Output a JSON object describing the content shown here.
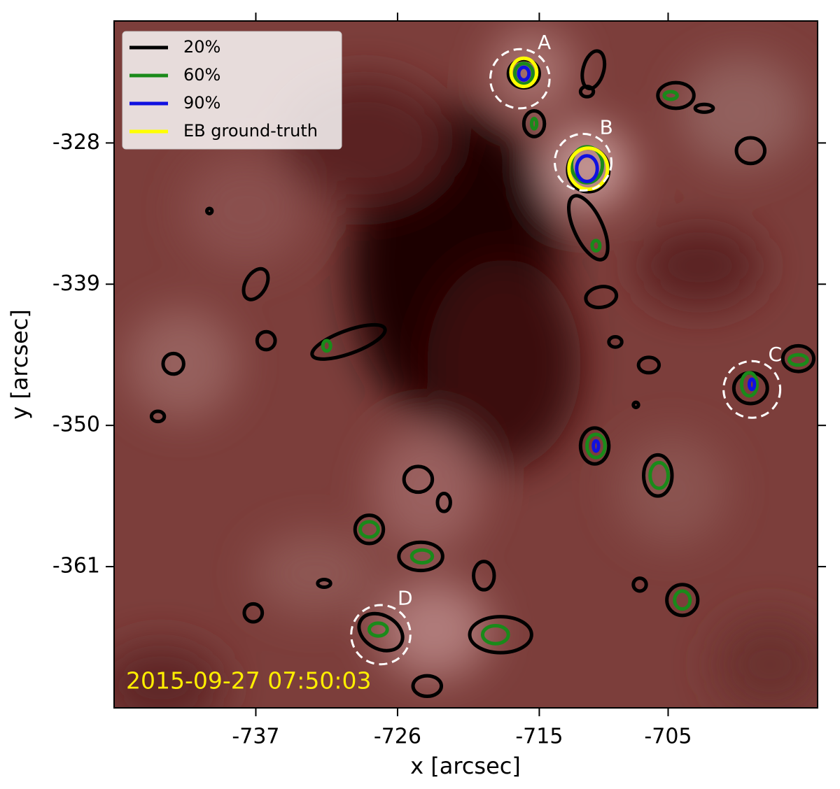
{
  "chart_data": {
    "type": "contour",
    "xlabel": "x [arcsec]",
    "ylabel": "y [arcsec]",
    "xlim": [
      -748.0,
      -693.4
    ],
    "ylim": [
      -372.0,
      -318.5
    ],
    "xticks": [
      -737,
      -726,
      -715,
      -705
    ],
    "yticks": [
      -328,
      -339,
      -350,
      -361
    ],
    "timestamp": "2015-09-27 07:50:03",
    "timestamp_color": "#ffee00",
    "legend": "upper left",
    "series": [
      {
        "name": "20%",
        "color": "#000000",
        "contours": [
          {
            "cx": -716.2,
            "cy": -322.6,
            "rx": 1.2,
            "ry": 1.1
          },
          {
            "cx": -710.8,
            "cy": -322.3,
            "rx": 0.8,
            "ry": 1.5,
            "angle": 15
          },
          {
            "cx": -711.3,
            "cy": -324.0,
            "rx": 0.5,
            "ry": 0.4
          },
          {
            "cx": -715.4,
            "cy": -326.5,
            "rx": 0.8,
            "ry": 1.0
          },
          {
            "cx": -704.4,
            "cy": -324.3,
            "rx": 1.4,
            "ry": 1.0
          },
          {
            "cx": -702.2,
            "cy": -325.3,
            "rx": 0.7,
            "ry": 0.3
          },
          {
            "cx": -698.6,
            "cy": -328.6,
            "rx": 1.1,
            "ry": 1.0
          },
          {
            "cx": -711.2,
            "cy": -330.1,
            "rx": 1.6,
            "ry": 1.7
          },
          {
            "cx": -711.2,
            "cy": -334.6,
            "rx": 1.1,
            "ry": 2.7,
            "angle": -25
          },
          {
            "cx": -710.2,
            "cy": -340.0,
            "rx": 1.2,
            "ry": 0.8,
            "angle": -10
          },
          {
            "cx": -740.6,
            "cy": -333.3,
            "rx": 0.2,
            "ry": 0.2
          },
          {
            "cx": -737.0,
            "cy": -339.0,
            "rx": 0.8,
            "ry": 1.3,
            "angle": 30
          },
          {
            "cx": -736.2,
            "cy": -343.4,
            "rx": 0.7,
            "ry": 0.7
          },
          {
            "cx": -729.8,
            "cy": -343.5,
            "rx": 3.0,
            "ry": 0.9,
            "angle": -20
          },
          {
            "cx": -743.4,
            "cy": -345.2,
            "rx": 0.8,
            "ry": 0.8
          },
          {
            "cx": -744.6,
            "cy": -349.3,
            "rx": 0.5,
            "ry": 0.4
          },
          {
            "cx": -709.1,
            "cy": -343.5,
            "rx": 0.5,
            "ry": 0.4
          },
          {
            "cx": -706.5,
            "cy": -345.3,
            "rx": 0.8,
            "ry": 0.6
          },
          {
            "cx": -707.5,
            "cy": -348.4,
            "rx": 0.2,
            "ry": 0.2
          },
          {
            "cx": -698.6,
            "cy": -347.1,
            "rx": 1.3,
            "ry": 1.2
          },
          {
            "cx": -694.9,
            "cy": -344.8,
            "rx": 1.2,
            "ry": 1.0
          },
          {
            "cx": -710.7,
            "cy": -351.6,
            "rx": 1.1,
            "ry": 1.4
          },
          {
            "cx": -705.8,
            "cy": -353.9,
            "rx": 1.1,
            "ry": 1.6
          },
          {
            "cx": -724.4,
            "cy": -354.2,
            "rx": 1.1,
            "ry": 1.0
          },
          {
            "cx": -722.4,
            "cy": -356.0,
            "rx": 0.5,
            "ry": 0.7
          },
          {
            "cx": -728.2,
            "cy": -358.1,
            "rx": 1.1,
            "ry": 1.1
          },
          {
            "cx": -724.2,
            "cy": -360.2,
            "rx": 1.7,
            "ry": 1.1
          },
          {
            "cx": -719.3,
            "cy": -361.7,
            "rx": 0.8,
            "ry": 1.1
          },
          {
            "cx": -731.7,
            "cy": -362.3,
            "rx": 0.5,
            "ry": 0.3
          },
          {
            "cx": -707.2,
            "cy": -362.4,
            "rx": 0.5,
            "ry": 0.5
          },
          {
            "cx": -703.9,
            "cy": -363.6,
            "rx": 1.2,
            "ry": 1.2
          },
          {
            "cx": -737.2,
            "cy": -364.6,
            "rx": 0.7,
            "ry": 0.7
          },
          {
            "cx": -727.3,
            "cy": -366.1,
            "rx": 1.8,
            "ry": 1.3,
            "angle": 30
          },
          {
            "cx": -718.0,
            "cy": -366.3,
            "rx": 2.4,
            "ry": 1.4
          },
          {
            "cx": -723.7,
            "cy": -370.3,
            "rx": 1.1,
            "ry": 0.8
          }
        ]
      },
      {
        "name": "60%",
        "color": "#1a8a1a",
        "contours": [
          {
            "cx": -716.2,
            "cy": -322.6,
            "rx": 0.7,
            "ry": 0.8
          },
          {
            "cx": -715.4,
            "cy": -326.5,
            "rx": 0.2,
            "ry": 0.4
          },
          {
            "cx": -704.8,
            "cy": -324.3,
            "rx": 0.5,
            "ry": 0.3
          },
          {
            "cx": -711.3,
            "cy": -329.7,
            "rx": 1.2,
            "ry": 1.4
          },
          {
            "cx": -710.6,
            "cy": -336.0,
            "rx": 0.3,
            "ry": 0.4
          },
          {
            "cx": -731.5,
            "cy": -343.8,
            "rx": 0.3,
            "ry": 0.4
          },
          {
            "cx": -694.9,
            "cy": -344.9,
            "rx": 0.7,
            "ry": 0.4
          },
          {
            "cx": -698.7,
            "cy": -346.8,
            "rx": 0.6,
            "ry": 0.9
          },
          {
            "cx": -710.6,
            "cy": -351.6,
            "rx": 0.7,
            "ry": 0.9
          },
          {
            "cx": -705.7,
            "cy": -353.9,
            "rx": 0.7,
            "ry": 1.0
          },
          {
            "cx": -728.2,
            "cy": -358.1,
            "rx": 0.7,
            "ry": 0.6
          },
          {
            "cx": -724.1,
            "cy": -360.2,
            "rx": 0.8,
            "ry": 0.5
          },
          {
            "cx": -703.9,
            "cy": -363.6,
            "rx": 0.6,
            "ry": 0.7
          },
          {
            "cx": -727.5,
            "cy": -365.9,
            "rx": 0.7,
            "ry": 0.5
          },
          {
            "cx": -718.4,
            "cy": -366.3,
            "rx": 1.0,
            "ry": 0.7
          }
        ]
      },
      {
        "name": "90%",
        "color": "#1010e0",
        "contours": [
          {
            "cx": -716.2,
            "cy": -322.6,
            "rx": 0.4,
            "ry": 0.5
          },
          {
            "cx": -711.3,
            "cy": -330.0,
            "rx": 0.8,
            "ry": 1.0
          },
          {
            "cx": -698.5,
            "cy": -346.8,
            "rx": 0.2,
            "ry": 0.4
          },
          {
            "cx": -710.6,
            "cy": -351.6,
            "rx": 0.2,
            "ry": 0.4
          }
        ]
      },
      {
        "name": "EB ground-truth",
        "color": "#ffff00",
        "contours": [
          {
            "cx": -716.2,
            "cy": -322.5,
            "rx": 1.0,
            "ry": 1.1
          },
          {
            "cx": -711.2,
            "cy": -330.0,
            "rx": 1.5,
            "ry": 1.6
          }
        ]
      }
    ],
    "annotations": [
      {
        "text": "A",
        "cx": -716.5,
        "cy": -323.0,
        "r": 2.3
      },
      {
        "text": "B",
        "cx": -711.6,
        "cy": -329.5,
        "r": 2.2
      },
      {
        "text": "C",
        "cx": -698.5,
        "cy": -347.2,
        "r": 2.2
      },
      {
        "text": "D",
        "cx": -727.3,
        "cy": -366.3,
        "r": 2.3
      }
    ]
  }
}
